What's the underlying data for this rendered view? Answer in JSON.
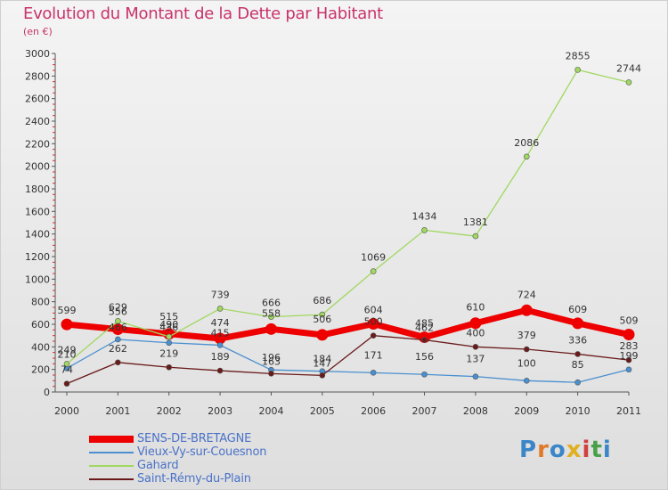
{
  "header": {
    "title": "Evolution du Montant de la Dette par Habitant",
    "subtitle": "(en €)"
  },
  "logo": {
    "text": "Proxiti",
    "letters": [
      {
        "ch": "P",
        "color": "#3a86c8"
      },
      {
        "ch": "r",
        "color": "#e07a2a"
      },
      {
        "ch": "o",
        "color": "#3a86c8"
      },
      {
        "ch": "x",
        "color": "#e0b020"
      },
      {
        "ch": "i",
        "color": "#d04040"
      },
      {
        "ch": "t",
        "color": "#4aa04a"
      },
      {
        "ch": "i",
        "color": "#3a86c8"
      }
    ]
  },
  "chart_data": {
    "type": "line",
    "title": "Evolution du Montant de la Dette par Habitant",
    "subtitle": "(en €)",
    "x": [
      "2000",
      "2001",
      "2002",
      "2003",
      "2004",
      "2005",
      "2006",
      "2007",
      "2008",
      "2009",
      "2010",
      "2011"
    ],
    "ylim": [
      0,
      3000
    ],
    "yticks": [
      0,
      200,
      400,
      600,
      800,
      1000,
      1200,
      1400,
      1600,
      1800,
      2000,
      2200,
      2400,
      2600,
      2800,
      3000
    ],
    "grid": false,
    "legend_position": "bottom-left",
    "series": [
      {
        "name": "SENS-DE-BRETAGNE",
        "color": "#ee0000",
        "values": [
          599,
          556,
          515,
          474,
          558,
          506,
          604,
          485,
          610,
          724,
          609,
          509
        ],
        "labels": [
          "599",
          "556",
          "515",
          "474",
          "558",
          "506",
          "604",
          "485",
          "610",
          "724",
          "609",
          "509"
        ],
        "label_dy": [
          -12,
          -16,
          -16,
          -14,
          -14,
          -14,
          -12,
          -12,
          -14,
          -14,
          -12,
          -12
        ]
      },
      {
        "name": "Vieux-Vy-sur-Couesnon",
        "color": "#4a90d0",
        "values": [
          210,
          466,
          436,
          415,
          196,
          184,
          171,
          156,
          137,
          100,
          85,
          199
        ],
        "labels": [
          "210",
          "466",
          "436",
          "415",
          "196",
          "184",
          "171",
          "156",
          "137",
          "100",
          "85",
          "199"
        ],
        "label_dy": [
          -12,
          -10,
          -14,
          -10,
          -10,
          -10,
          -16,
          -16,
          -16,
          -16,
          -16,
          -12
        ]
      },
      {
        "name": "Gahard",
        "color": "#a0d860",
        "values": [
          249,
          629,
          490,
          739,
          666,
          686,
          1069,
          1434,
          1381,
          2086,
          2855,
          2744
        ],
        "labels": [
          "249",
          "629",
          "490",
          "739",
          "666",
          "686",
          "1069",
          "1434",
          "1381",
          "2086",
          "2855",
          "2744"
        ],
        "label_dy": [
          -12,
          -12,
          -10,
          -12,
          -12,
          -12,
          -12,
          -12,
          -12,
          -12,
          -12,
          -12
        ]
      },
      {
        "name": "Saint-Rémy-du-Plain",
        "color": "#6a1a1a",
        "values": [
          74,
          262,
          219,
          189,
          163,
          147,
          500,
          462,
          400,
          379,
          336,
          283
        ],
        "labels": [
          "74",
          "262",
          "219",
          "189",
          "163",
          "147",
          "500",
          "462",
          "400",
          "379",
          "336",
          "283"
        ],
        "label_dy": [
          -12,
          -12,
          -12,
          -12,
          -10,
          -10,
          -12,
          -10,
          -12,
          -12,
          -12,
          -12
        ]
      }
    ]
  }
}
